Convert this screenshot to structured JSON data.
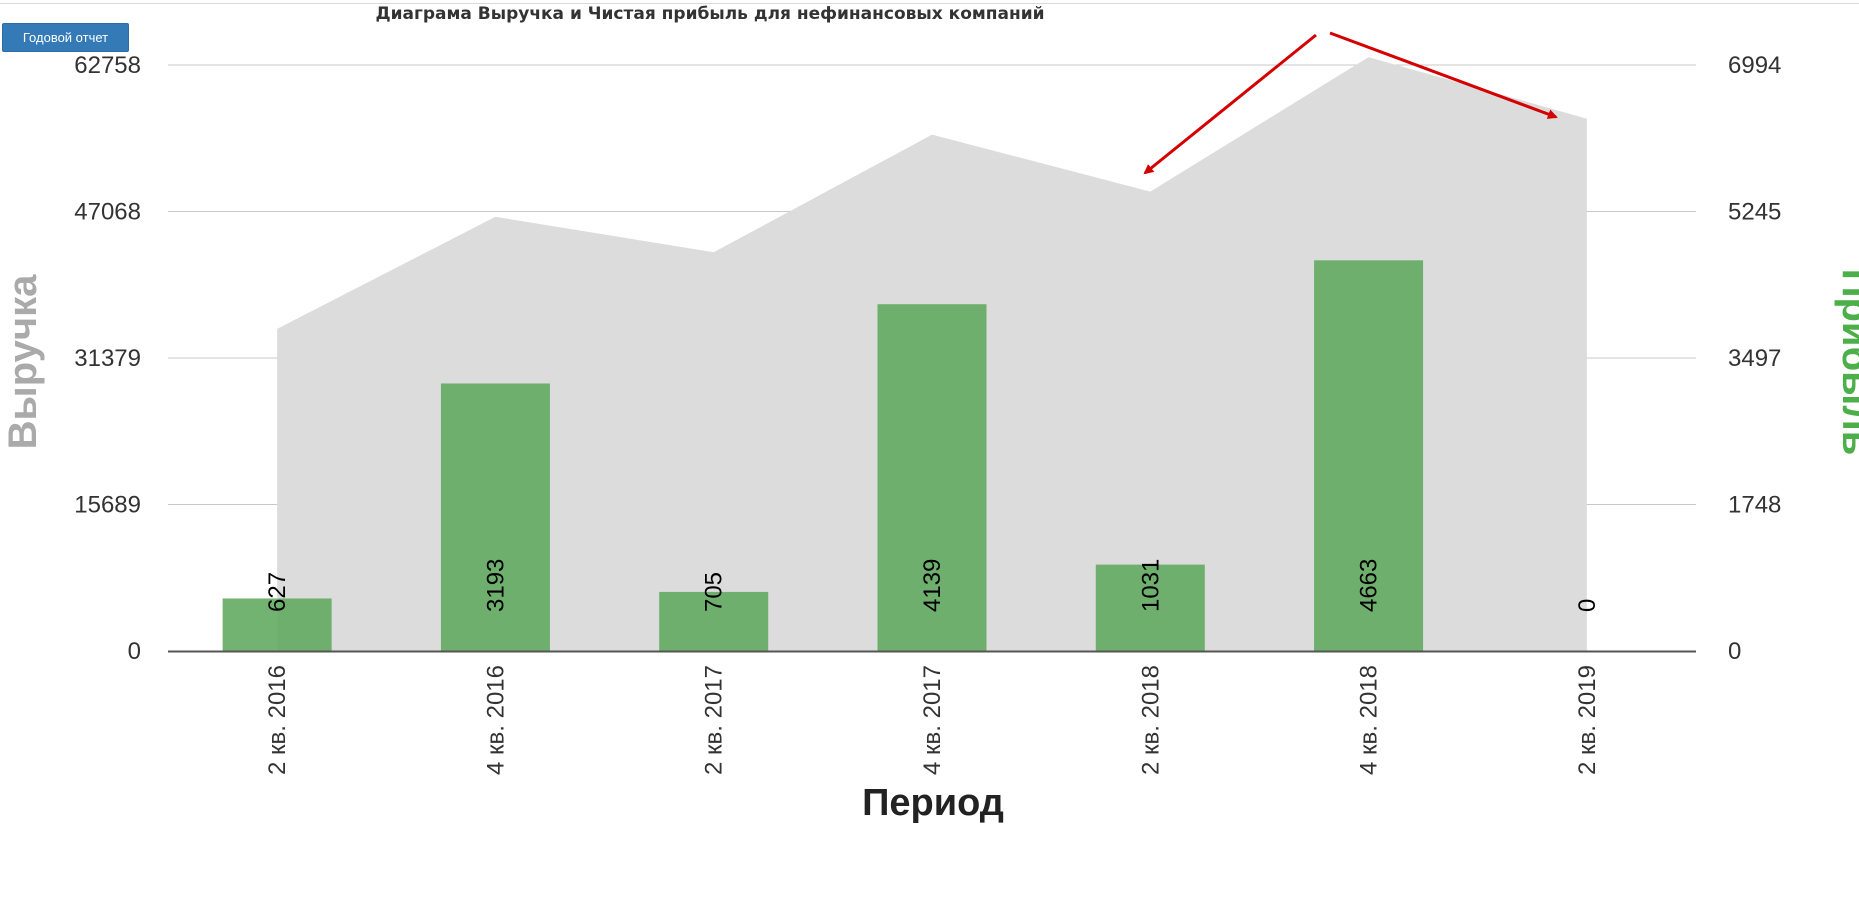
{
  "button": {
    "label": "Годовой отчет"
  },
  "colors": {
    "area": "#dcdcdc",
    "bar": "#5ea95e",
    "grid": "#c8c8c8",
    "arrow": "#d40000",
    "left_axis_title": "#aaaaaa",
    "right_axis_title": "#4daf4a"
  },
  "chart_data": {
    "type": "bar",
    "title": "Диаграма Выручка и Чистая прибыль для нефинансовых компаний",
    "xlabel": "Период",
    "ylabel": "Выручка",
    "y2label": "Прибыль",
    "categories": [
      "2 кв. 2016",
      "4 кв. 2016",
      "2 кв. 2017",
      "4 кв. 2017",
      "2 кв. 2018",
      "4 кв. 2018",
      "2 кв. 2019"
    ],
    "ylim": [
      0,
      62758
    ],
    "y2lim": [
      0,
      6994
    ],
    "yticks": [
      "0",
      "15689",
      "31379",
      "47068",
      "62758"
    ],
    "y2ticks": [
      "0",
      "1748",
      "3497",
      "5245",
      "6994"
    ],
    "grid": true,
    "series": [
      {
        "name": "Выручка",
        "type": "area",
        "axis": "left",
        "values": [
          34500,
          46500,
          42700,
          55300,
          49200,
          63600,
          57000
        ]
      },
      {
        "name": "Прибыль",
        "type": "bar",
        "axis": "right",
        "values": [
          627,
          3193,
          705,
          4139,
          1031,
          4663,
          0
        ],
        "labels": [
          "627",
          "3193",
          "705",
          "4139",
          "1031",
          "4663",
          "0"
        ]
      }
    ]
  }
}
